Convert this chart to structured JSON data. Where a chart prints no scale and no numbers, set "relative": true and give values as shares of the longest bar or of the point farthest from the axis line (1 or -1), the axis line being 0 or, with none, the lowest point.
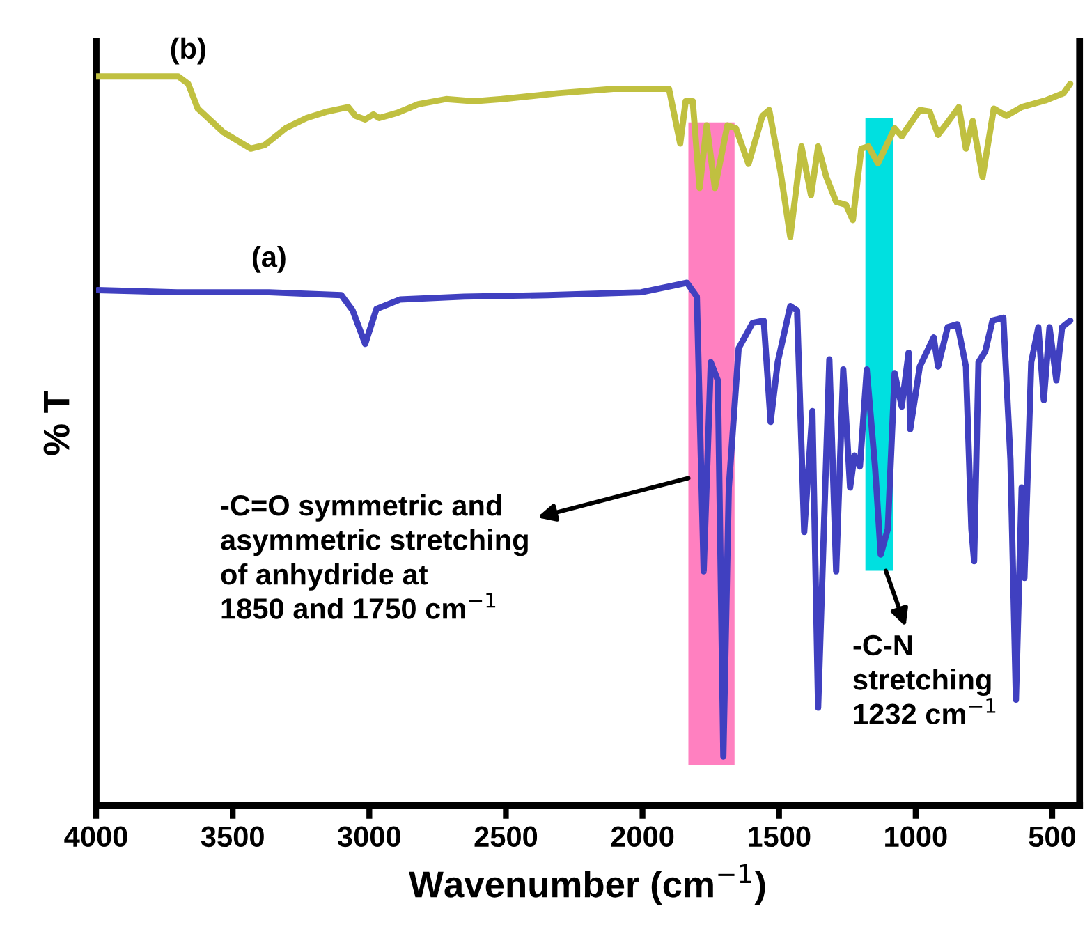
{
  "chart_data": {
    "type": "line",
    "relative": true,
    "ylabel": "% T",
    "xlabel": "Wavenumber (cm$^{−1}$)",
    "xlim": [
      4000,
      400
    ],
    "xticks": [
      4000,
      3500,
      3000,
      2500,
      2000,
      1500,
      1000,
      500
    ],
    "tick_labels": "x",
    "series": [
      {
        "name": "(b)",
        "color": "#c0c040",
        "x": [
          4000,
          3699,
          3663,
          3628,
          3536,
          3434,
          3383,
          3306,
          3230,
          3153,
          3077,
          3051,
          3015,
          2985,
          2964,
          2898,
          2821,
          2719,
          2617,
          2515,
          2311,
          2107,
          1903,
          1862,
          1842,
          1816,
          1791,
          1765,
          1735,
          1689,
          1658,
          1612,
          1561,
          1536,
          1495,
          1459,
          1418,
          1383,
          1357,
          1327,
          1291,
          1255,
          1230,
          1199,
          1173,
          1138,
          1077,
          1051,
          985,
          949,
          918,
          883,
          842,
          816,
          791,
          755,
          714,
          668,
          612,
          526,
          459,
          434
        ],
        "values": [
          1.0,
          1.0,
          0.99,
          0.956,
          0.924,
          0.901,
          0.906,
          0.929,
          0.943,
          0.952,
          0.958,
          0.946,
          0.941,
          0.948,
          0.943,
          0.95,
          0.962,
          0.969,
          0.966,
          0.969,
          0.977,
          0.983,
          0.983,
          0.908,
          0.966,
          0.966,
          0.847,
          0.933,
          0.847,
          0.933,
          0.929,
          0.88,
          0.946,
          0.954,
          0.87,
          0.78,
          0.904,
          0.837,
          0.904,
          0.862,
          0.828,
          0.824,
          0.803,
          0.901,
          0.904,
          0.881,
          0.929,
          0.918,
          0.954,
          0.952,
          0.92,
          0.937,
          0.958,
          0.901,
          0.939,
          0.862,
          0.956,
          0.946,
          0.958,
          0.967,
          0.977,
          0.99
        ]
      },
      {
        "name": "(a)",
        "color": "#4040c0",
        "x": [
          3995,
          3704,
          3367,
          3102,
          3061,
          3015,
          2974,
          2888,
          2653,
          2347,
          2005,
          1888,
          1837,
          1801,
          1776,
          1750,
          1724,
          1704,
          1684,
          1648,
          1597,
          1556,
          1531,
          1505,
          1459,
          1434,
          1408,
          1378,
          1357,
          1316,
          1291,
          1265,
          1240,
          1224,
          1204,
          1179,
          1148,
          1128,
          1102,
          1077,
          1051,
          1026,
          1020,
          985,
          934,
          918,
          883,
          847,
          816,
          796,
          786,
          770,
          745,
          719,
          679,
          653,
          633,
          612,
          602,
          577,
          551,
          531,
          510,
          485,
          464,
          434
        ],
        "values": [
          0.707,
          0.704,
          0.704,
          0.7,
          0.679,
          0.633,
          0.681,
          0.694,
          0.698,
          0.7,
          0.704,
          0.713,
          0.717,
          0.698,
          0.321,
          0.608,
          0.583,
          0.067,
          0.436,
          0.627,
          0.662,
          0.665,
          0.526,
          0.608,
          0.685,
          0.679,
          0.375,
          0.541,
          0.134,
          0.612,
          0.321,
          0.598,
          0.436,
          0.48,
          0.465,
          0.598,
          0.461,
          0.344,
          0.379,
          0.593,
          0.547,
          0.621,
          0.516,
          0.602,
          0.642,
          0.602,
          0.656,
          0.66,
          0.602,
          0.379,
          0.335,
          0.608,
          0.623,
          0.665,
          0.669,
          0.474,
          0.145,
          0.436,
          0.312,
          0.608,
          0.656,
          0.556,
          0.656,
          0.583,
          0.656,
          0.665
        ]
      }
    ],
    "bands": [
      {
        "axis": "x",
        "from": 1832,
        "to": 1663,
        "color": "#ff80c0"
      },
      {
        "axis": "x",
        "from": 1184,
        "to": 1082,
        "color": "#00e0e0"
      }
    ],
    "annotations": [
      {
        "text": "-C=O symmetric and\nasymmetric stretching\nof anhydride at\n1850 and 1750 cm$^{−1}$",
        "x": 1832,
        "y": 0.449
      },
      "-C-N\nstretching\n1232 cm$^{−1}$"
    ]
  }
}
